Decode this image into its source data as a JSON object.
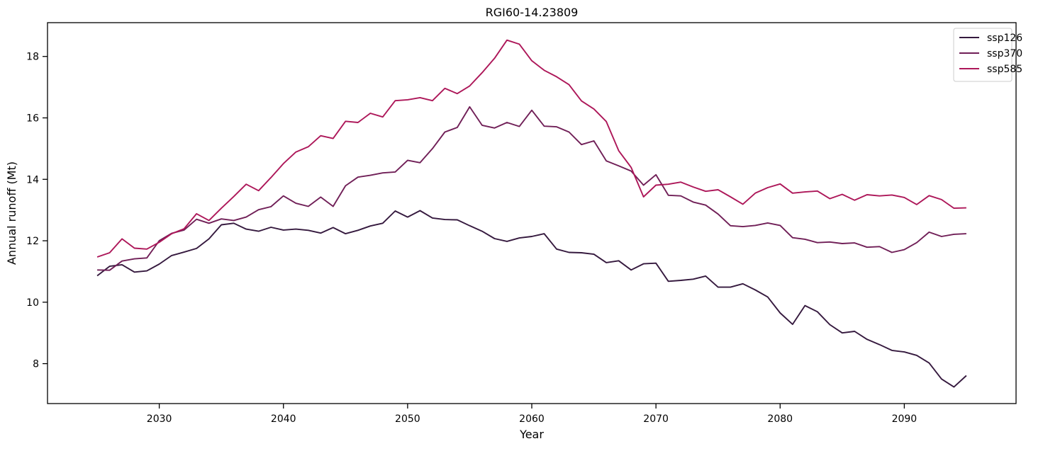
{
  "chart_data": {
    "type": "line",
    "title": "RGI60-14.23809",
    "xlabel": "Year",
    "ylabel": "Annual runoff (Mt)",
    "xlim": [
      2021,
      2099
    ],
    "ylim": [
      6.7,
      19.1
    ],
    "xticks": [
      2030,
      2040,
      2050,
      2060,
      2070,
      2080,
      2090
    ],
    "yticks": [
      8,
      10,
      12,
      14,
      16,
      18
    ],
    "grid": false,
    "legend_position": "top-right",
    "x": [
      2025,
      2026,
      2027,
      2028,
      2029,
      2030,
      2031,
      2032,
      2033,
      2034,
      2035,
      2036,
      2037,
      2038,
      2039,
      2040,
      2041,
      2042,
      2043,
      2044,
      2045,
      2046,
      2047,
      2048,
      2049,
      2050,
      2051,
      2052,
      2053,
      2054,
      2055,
      2056,
      2057,
      2058,
      2059,
      2060,
      2061,
      2062,
      2063,
      2064,
      2065,
      2066,
      2067,
      2068,
      2069,
      2070,
      2071,
      2072,
      2073,
      2074,
      2075,
      2076,
      2077,
      2078,
      2079,
      2080,
      2081,
      2082,
      2083,
      2084,
      2085,
      2086,
      2087,
      2088,
      2089,
      2090,
      2091,
      2092,
      2093,
      2094,
      2095
    ],
    "series": [
      {
        "name": "ssp126",
        "color": "#35193e",
        "values": [
          10.86,
          11.17,
          11.22,
          10.98,
          11.02,
          11.24,
          11.52,
          11.63,
          11.75,
          12.06,
          12.52,
          12.57,
          12.38,
          12.31,
          12.44,
          12.35,
          12.38,
          12.34,
          12.25,
          12.43,
          12.23,
          12.34,
          12.48,
          12.57,
          12.97,
          12.77,
          12.98,
          12.74,
          12.69,
          12.68,
          12.49,
          12.31,
          12.07,
          11.98,
          12.09,
          12.14,
          12.23,
          11.73,
          11.62,
          11.61,
          11.56,
          11.29,
          11.35,
          11.05,
          11.25,
          11.27,
          10.68,
          10.71,
          10.75,
          10.85,
          10.49,
          10.49,
          10.6,
          10.4,
          10.17,
          9.65,
          9.28,
          9.89,
          9.69,
          9.27,
          9.0,
          9.05,
          8.79,
          8.62,
          8.43,
          8.38,
          8.27,
          8.02,
          7.5,
          7.24,
          7.61
        ]
      },
      {
        "name": "ssp370",
        "color": "#701f57",
        "values": [
          11.05,
          11.04,
          11.34,
          11.41,
          11.44,
          12.0,
          12.24,
          12.35,
          12.7,
          12.57,
          12.71,
          12.66,
          12.77,
          13.01,
          13.11,
          13.46,
          13.22,
          13.12,
          13.42,
          13.12,
          13.79,
          14.07,
          14.13,
          14.21,
          14.24,
          14.62,
          14.54,
          15.0,
          15.54,
          15.69,
          16.36,
          15.76,
          15.67,
          15.85,
          15.72,
          16.25,
          15.73,
          15.71,
          15.54,
          15.13,
          15.25,
          14.6,
          14.44,
          14.27,
          13.81,
          14.15,
          13.48,
          13.46,
          13.26,
          13.16,
          12.87,
          12.49,
          12.46,
          12.5,
          12.58,
          12.5,
          12.1,
          12.05,
          11.94,
          11.96,
          11.91,
          11.93,
          11.79,
          11.81,
          11.62,
          11.71,
          11.94,
          12.28,
          12.14,
          12.21,
          12.23
        ]
      },
      {
        "name": "ssp585",
        "color": "#ad1759",
        "values": [
          11.47,
          11.61,
          12.06,
          11.76,
          11.73,
          11.95,
          12.23,
          12.39,
          12.88,
          12.66,
          13.06,
          13.44,
          13.84,
          13.63,
          14.06,
          14.51,
          14.89,
          15.06,
          15.42,
          15.33,
          15.89,
          15.85,
          16.15,
          16.03,
          16.56,
          16.59,
          16.66,
          16.56,
          16.96,
          16.79,
          17.04,
          17.47,
          17.94,
          18.53,
          18.4,
          17.86,
          17.55,
          17.34,
          17.08,
          16.55,
          16.29,
          15.88,
          14.93,
          14.39,
          13.43,
          13.81,
          13.84,
          13.91,
          13.75,
          13.61,
          13.66,
          13.43,
          13.19,
          13.55,
          13.73,
          13.85,
          13.55,
          13.59,
          13.62,
          13.37,
          13.51,
          13.32,
          13.5,
          13.46,
          13.49,
          13.41,
          13.18,
          13.47,
          13.34,
          13.06,
          13.07
        ]
      }
    ]
  }
}
